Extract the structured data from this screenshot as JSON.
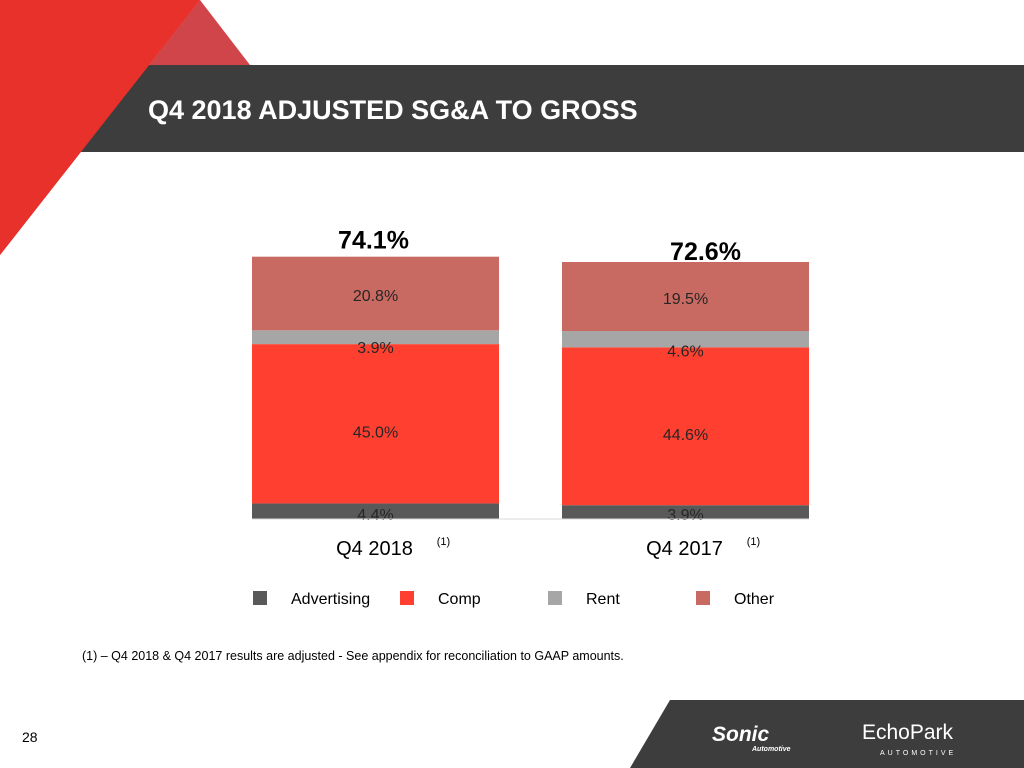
{
  "slide": {
    "title": "Q4 2018 ADJUSTED SG&A TO GROSS",
    "footnote": "(1) – Q4 2018 & Q4 2017 results are adjusted - See appendix for reconciliation to GAAP amounts.",
    "page_number": "28",
    "logos": {
      "sonic": "Sonic",
      "sonic_sub": "Automotive",
      "echopark": "EchoPark",
      "echopark_sub": "AUTOMOTIVE"
    }
  },
  "colors": {
    "accent_red": "#e8312a",
    "header_bar": "#3d3d3d",
    "advertising": "#595959",
    "comp": "#ff4030",
    "rent": "#a6a6a6",
    "other": "#c96a62"
  },
  "chart_data": {
    "type": "bar",
    "stacked": true,
    "categories": [
      "Q4 2018",
      "Q4 2017"
    ],
    "category_superscript": "(1)",
    "totals": [
      "74.1%",
      "72.6%"
    ],
    "series": [
      {
        "name": "Advertising",
        "values": [
          4.4,
          3.9
        ],
        "labels": [
          "4.4%",
          "3.9%"
        ],
        "color": "#595959"
      },
      {
        "name": "Comp",
        "values": [
          45.0,
          44.6
        ],
        "labels": [
          "45.0%",
          "44.6%"
        ],
        "color": "#ff4030"
      },
      {
        "name": "Rent",
        "values": [
          3.9,
          4.6
        ],
        "labels": [
          "3.9%",
          "4.6%"
        ],
        "color": "#a6a6a6"
      },
      {
        "name": "Other",
        "values": [
          20.8,
          19.5
        ],
        "labels": [
          "20.8%",
          "19.5%"
        ],
        "color": "#c96a62"
      }
    ],
    "legend_position": "bottom",
    "unit": "%"
  }
}
